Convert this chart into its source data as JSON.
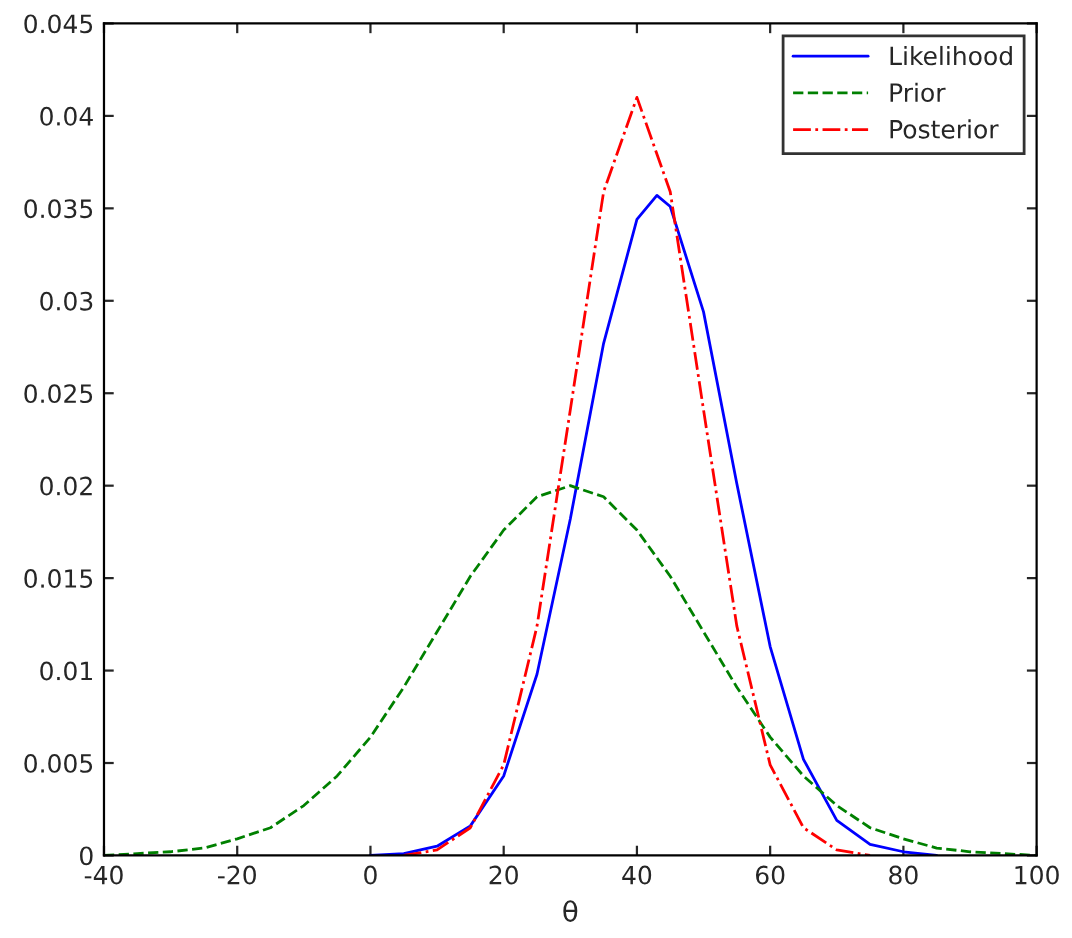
{
  "chart_data": {
    "type": "line",
    "xlabel": "θ",
    "xlim": [
      -40,
      100
    ],
    "xticks": [
      -40,
      -20,
      0,
      20,
      40,
      60,
      80,
      100
    ],
    "ylim": [
      0,
      0.045
    ],
    "yticks": [
      0,
      0.005,
      0.01,
      0.015,
      0.02,
      0.025,
      0.03,
      0.035,
      0.04,
      0.045
    ],
    "grid": false,
    "legend": "top right",
    "marker": "none",
    "series": [
      {
        "name": "Likelihood",
        "color": "#0000ff",
        "line_style": "solid",
        "x": [
          0,
          5,
          10,
          15,
          20,
          25,
          30,
          35,
          40,
          43,
          45,
          50,
          55,
          60,
          65,
          70,
          75,
          80,
          85
        ],
        "values": [
          0,
          0.0001,
          0.0005,
          0.0016,
          0.0043,
          0.0098,
          0.0182,
          0.0277,
          0.0344,
          0.0357,
          0.0351,
          0.0294,
          0.0201,
          0.0113,
          0.0052,
          0.0019,
          0.0006,
          0.0002,
          0
        ]
      },
      {
        "name": "Prior",
        "color": "#008000",
        "line_style": "dashed",
        "x": [
          -40,
          -35,
          -30,
          -25,
          -20,
          -15,
          -10,
          -5,
          0,
          5,
          10,
          15,
          20,
          25,
          30,
          35,
          40,
          45,
          50,
          55,
          60,
          65,
          70,
          75,
          80,
          85,
          90,
          95,
          100
        ],
        "values": [
          0,
          0.0001,
          0.0002,
          0.0004,
          0.0009,
          0.0015,
          0.0027,
          0.0043,
          0.0064,
          0.0091,
          0.0121,
          0.0151,
          0.0176,
          0.0194,
          0.02,
          0.0194,
          0.0176,
          0.0151,
          0.0121,
          0.0091,
          0.0064,
          0.0043,
          0.0027,
          0.0015,
          0.0009,
          0.0004,
          0.0002,
          0.0001,
          0
        ]
      },
      {
        "name": "Posterior",
        "color": "#ff0000",
        "line_style": "dashdot",
        "x": [
          5,
          10,
          15,
          20,
          25,
          30,
          35,
          40,
          45,
          50,
          55,
          60,
          65,
          70,
          75
        ],
        "values": [
          0,
          0.0003,
          0.0015,
          0.0049,
          0.0124,
          0.0241,
          0.0359,
          0.041,
          0.0359,
          0.0241,
          0.0124,
          0.0049,
          0.0015,
          0.0003,
          0
        ]
      }
    ]
  }
}
